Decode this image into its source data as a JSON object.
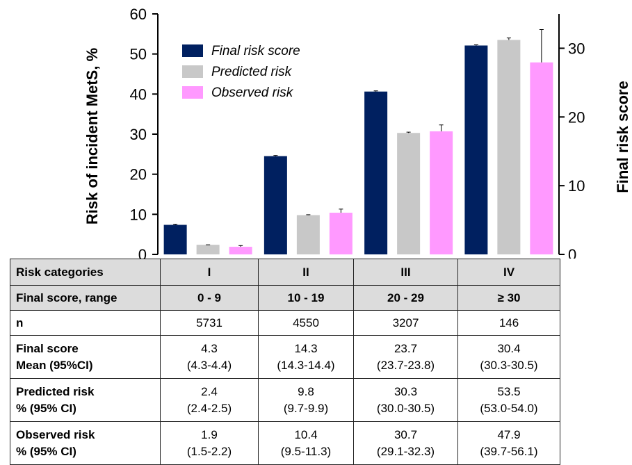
{
  "chart_data": {
    "type": "bar",
    "categories": [
      "I",
      "II",
      "III",
      "IV"
    ],
    "series": [
      {
        "name": "Final risk score",
        "axis": "right",
        "values": [
          4.3,
          14.3,
          23.7,
          30.4
        ],
        "err_low": [
          4.3,
          14.3,
          23.7,
          30.3
        ],
        "err_high": [
          4.4,
          14.4,
          23.8,
          30.5
        ],
        "color": "#002060"
      },
      {
        "name": "Predicted risk",
        "axis": "left",
        "values": [
          2.4,
          9.8,
          30.3,
          53.5
        ],
        "err_low": [
          2.4,
          9.7,
          30.0,
          53.0
        ],
        "err_high": [
          2.5,
          9.9,
          30.5,
          54.0
        ],
        "color": "#c8c8c8"
      },
      {
        "name": "Observed risk",
        "axis": "left",
        "values": [
          1.9,
          10.4,
          30.7,
          47.9
        ],
        "err_low": [
          1.5,
          9.5,
          29.1,
          39.7
        ],
        "err_high": [
          2.2,
          11.3,
          32.3,
          56.1
        ],
        "color": "#ff99ff"
      }
    ],
    "ylabel": "Risk of incident MetS, %",
    "ylim": [
      0,
      60
    ],
    "yticks": [
      "0",
      "10",
      "20",
      "30",
      "40",
      "50",
      "60"
    ],
    "y2label": "Final risk score",
    "y2lim": [
      0,
      35
    ],
    "y2ticks": [
      "0",
      "10",
      "20",
      "30"
    ],
    "legend_position": "top-left",
    "grid": false
  },
  "table": {
    "rows": [
      {
        "header": [
          "Risk categories"
        ],
        "cells": [
          [
            "I"
          ],
          [
            "II"
          ],
          [
            "III"
          ],
          [
            "IV"
          ]
        ],
        "style": "gray"
      },
      {
        "header": [
          "Final score, range"
        ],
        "cells": [
          [
            "0 - 9"
          ],
          [
            "10 - 19"
          ],
          [
            "20 - 29"
          ],
          [
            "≥ 30"
          ]
        ],
        "style": "gray"
      },
      {
        "header": [
          "n"
        ],
        "cells": [
          [
            "5731"
          ],
          [
            "4550"
          ],
          [
            "3207"
          ],
          [
            "146"
          ]
        ],
        "style": "white"
      },
      {
        "header": [
          "Final score",
          "Mean (95%CI)"
        ],
        "cells": [
          [
            "4.3",
            "(4.3-4.4)"
          ],
          [
            "14.3",
            "(14.3-14.4)"
          ],
          [
            "23.7",
            "(23.7-23.8)"
          ],
          [
            "30.4",
            "(30.3-30.5)"
          ]
        ],
        "style": "white"
      },
      {
        "header": [
          "Predicted risk",
          "% (95% CI)"
        ],
        "cells": [
          [
            "2.4",
            "(2.4-2.5)"
          ],
          [
            "9.8",
            "(9.7-9.9)"
          ],
          [
            "30.3",
            "(30.0-30.5)"
          ],
          [
            "53.5",
            "(53.0-54.0)"
          ]
        ],
        "style": "white"
      },
      {
        "header": [
          "Observed risk",
          "% (95% CI)"
        ],
        "cells": [
          [
            "1.9",
            "(1.5-2.2)"
          ],
          [
            "10.4",
            "(9.5-11.3)"
          ],
          [
            "30.7",
            "(29.1-32.3)"
          ],
          [
            "47.9",
            "(39.7-56.1)"
          ]
        ],
        "style": "white"
      }
    ]
  }
}
